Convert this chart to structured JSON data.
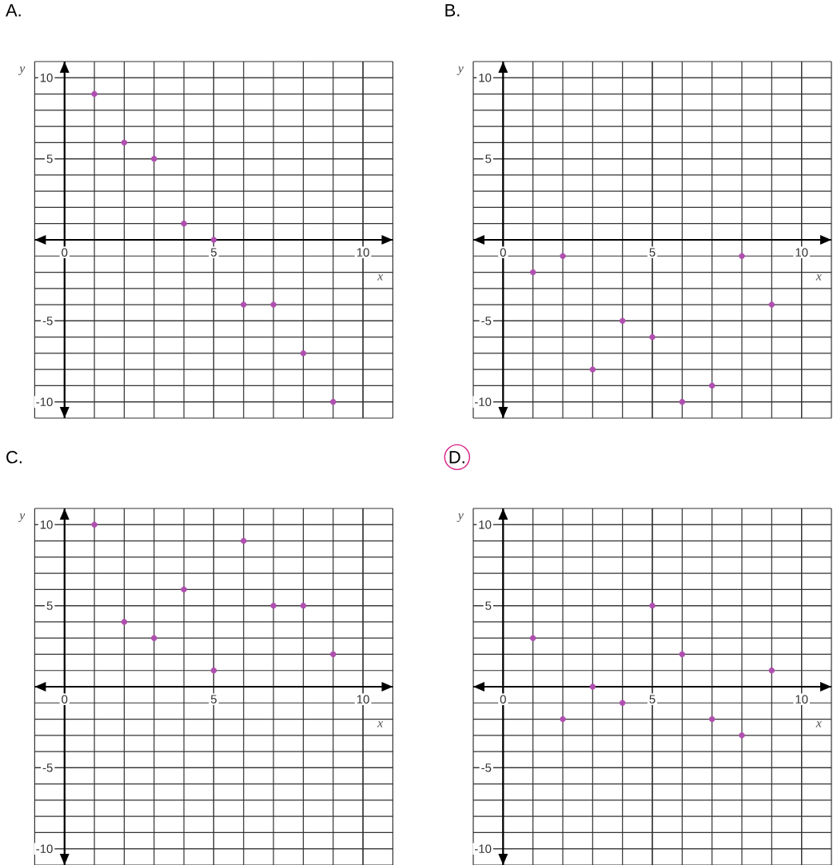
{
  "chart_data": [
    {
      "type": "scatter",
      "title": "A.",
      "xlabel": "x",
      "ylabel": "y",
      "x": [
        1,
        2,
        3,
        4,
        5,
        6,
        7,
        8,
        9
      ],
      "values": [
        9,
        6,
        5,
        1,
        0,
        -4,
        -4,
        -7,
        -10
      ],
      "color": "#b04fb0",
      "xlim": [
        -1,
        11
      ],
      "ylim": [
        -11,
        11
      ],
      "xticks": [
        0,
        5,
        10
      ],
      "yticks": [
        -10,
        -5,
        5,
        10
      ],
      "grid": true,
      "marker": "circle"
    },
    {
      "type": "scatter",
      "title": "B.",
      "xlabel": "x",
      "ylabel": "y",
      "x": [
        1,
        2,
        3,
        4,
        5,
        6,
        7,
        8,
        9
      ],
      "values": [
        -2,
        -1,
        -8,
        -5,
        -6,
        -10,
        -9,
        -1,
        -4
      ],
      "color": "#b04fb0",
      "xlim": [
        -1,
        11
      ],
      "ylim": [
        -11,
        11
      ],
      "xticks": [
        0,
        5,
        10
      ],
      "yticks": [
        -10,
        -5,
        5,
        10
      ],
      "grid": true,
      "marker": "circle"
    },
    {
      "type": "scatter",
      "title": "C.",
      "xlabel": "x",
      "ylabel": "y",
      "x": [
        1,
        2,
        3,
        4,
        5,
        6,
        7,
        8,
        9
      ],
      "values": [
        10,
        4,
        3,
        6,
        1,
        9,
        5,
        5,
        2
      ],
      "color": "#b04fb0",
      "xlim": [
        -1,
        11
      ],
      "ylim": [
        -11,
        11
      ],
      "xticks": [
        0,
        5,
        10
      ],
      "yticks": [
        -10,
        -5,
        5,
        10
      ],
      "grid": true,
      "marker": "circle"
    },
    {
      "type": "scatter",
      "title": "D.",
      "xlabel": "x",
      "ylabel": "y",
      "x": [
        1,
        2,
        3,
        4,
        5,
        6,
        7,
        8,
        9
      ],
      "values": [
        3,
        -2,
        0,
        -1,
        5,
        2,
        -2,
        -3,
        1
      ],
      "color": "#b04fb0",
      "xlim": [
        -1,
        11
      ],
      "ylim": [
        -11,
        11
      ],
      "xticks": [
        0,
        5,
        10
      ],
      "yticks": [
        -10,
        -5,
        5,
        10
      ],
      "grid": true,
      "marker": "circle"
    }
  ]
}
